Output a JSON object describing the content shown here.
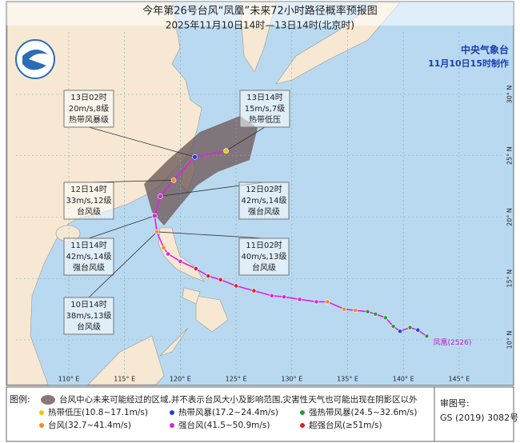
{
  "header": {
    "title": "今年第26号台风“凤凰”未来72小时路径概率预报图",
    "subtitle": "2025年11月10日14时—13日14时(北京时)"
  },
  "agency": {
    "name": "中央气象台",
    "made": "11月10日15时制作"
  },
  "map": {
    "lon_labels": [
      {
        "value": 110,
        "label": "110° E"
      },
      {
        "value": 115,
        "label": "115° E"
      },
      {
        "value": 120,
        "label": "120° E"
      },
      {
        "value": 125,
        "label": "125° E"
      },
      {
        "value": 130,
        "label": "130° E"
      },
      {
        "value": 135,
        "label": "135° E"
      },
      {
        "value": 140,
        "label": "140° E"
      },
      {
        "value": 145,
        "label": "145° E"
      }
    ],
    "lat_labels": [
      {
        "value": 10,
        "label": "10° N"
      },
      {
        "value": 15,
        "label": "15° N"
      },
      {
        "value": 20,
        "label": "20° N"
      },
      {
        "value": 25,
        "label": "25° N"
      },
      {
        "value": 30,
        "label": "30° N"
      }
    ]
  },
  "typhoon_name": "凤凰(2526)",
  "track": {
    "past": [
      {
        "lon": 142.1,
        "lat": 10.3,
        "color": "#2a9a3a"
      },
      {
        "lon": 141.3,
        "lat": 10.8,
        "color": "#2040e0"
      },
      {
        "lon": 140.6,
        "lat": 11.0,
        "color": "#2a9a3a"
      },
      {
        "lon": 139.7,
        "lat": 10.7,
        "color": "#2040e0"
      },
      {
        "lon": 139.1,
        "lat": 11.1,
        "color": "#2a9a3a"
      },
      {
        "lon": 138.4,
        "lat": 11.8,
        "color": "#2a9a3a"
      },
      {
        "lon": 137.5,
        "lat": 12.1,
        "color": "#2a9a3a"
      },
      {
        "lon": 136.8,
        "lat": 12.3,
        "color": "#2a9a3a"
      },
      {
        "lon": 135.7,
        "lat": 12.4,
        "color": "#f08a20"
      },
      {
        "lon": 134.7,
        "lat": 12.5,
        "color": "#f08a20"
      },
      {
        "lon": 133.2,
        "lat": 13.1,
        "color": "#f08a20"
      },
      {
        "lon": 132.2,
        "lat": 13.1,
        "color": "#e020e0"
      },
      {
        "lon": 130.7,
        "lat": 13.3,
        "color": "#e020e0"
      },
      {
        "lon": 129.3,
        "lat": 13.5,
        "color": "#e020e0"
      },
      {
        "lon": 128.2,
        "lat": 13.6,
        "color": "#e020e0"
      },
      {
        "lon": 126.6,
        "lat": 14.0,
        "color": "#e02020"
      },
      {
        "lon": 125.0,
        "lat": 14.4,
        "color": "#e02020"
      },
      {
        "lon": 123.6,
        "lat": 14.9,
        "color": "#e02020"
      },
      {
        "lon": 122.5,
        "lat": 15.2,
        "color": "#e02020"
      },
      {
        "lon": 121.4,
        "lat": 15.8,
        "color": "#e02020"
      },
      {
        "lon": 120.0,
        "lat": 16.4,
        "color": "#e020e0"
      },
      {
        "lon": 118.9,
        "lat": 17.0,
        "color": "#e020e0"
      },
      {
        "lon": 118.5,
        "lat": 17.5,
        "color": "#f08a20"
      },
      {
        "lon": 117.9,
        "lat": 18.8,
        "color": "#f08a20"
      }
    ],
    "forecast": [
      {
        "lon": 117.7,
        "lat": 20.1,
        "color": "#e020e0",
        "lines": [
          "11日14时",
          "42m/s,14级",
          "强台风级"
        ]
      },
      {
        "lon": 118.2,
        "lat": 21.7,
        "color": "#e020e0",
        "lines": [
          "12日02时",
          "42m/s,14级",
          "强台风级"
        ]
      },
      {
        "lon": 119.4,
        "lat": 23.0,
        "color": "#f08a20",
        "lines": [
          "12日14时",
          "33m/s,12级",
          "台风级"
        ]
      },
      {
        "lon": 121.3,
        "lat": 24.9,
        "color": "#2040e0",
        "lines": [
          "13日02时",
          "20m/s,8级",
          "热带风暴级"
        ]
      },
      {
        "lon": 124.1,
        "lat": 25.4,
        "color": "#f5c400",
        "lines": [
          "13日14时",
          "15m/s,7级",
          "热带低压"
        ]
      }
    ],
    "current": [
      {
        "lines": [
          "10日14时",
          "38m/s,13级",
          "台风级"
        ]
      },
      {
        "lines": [
          "11日02时",
          "40m/s,13级",
          "台风级"
        ]
      }
    ]
  },
  "legend": {
    "title": "图例:",
    "cone": "台风中心未来可能经过的区域,并不表示台风大小及影响范围,灾害性天气也可能出现在阴影区以外",
    "items": [
      {
        "name": "热带低压(10.8~17.1m/s)",
        "color": "#f5c400"
      },
      {
        "name": "热带风暴(17.2~24.4m/s)",
        "color": "#2040e0"
      },
      {
        "name": "强热带风暴(24.5~32.6m/s)",
        "color": "#2a9a3a"
      },
      {
        "name": "台风(32.7~41.4m/s)",
        "color": "#f08a20"
      },
      {
        "name": "强台风(41.5~50.9m/s)",
        "color": "#e020e0"
      },
      {
        "name": "超强台风(≥51m/s)",
        "color": "#e02020"
      }
    ]
  },
  "approval": {
    "label": "审图号:",
    "code": "GS (2019) 3082号"
  }
}
